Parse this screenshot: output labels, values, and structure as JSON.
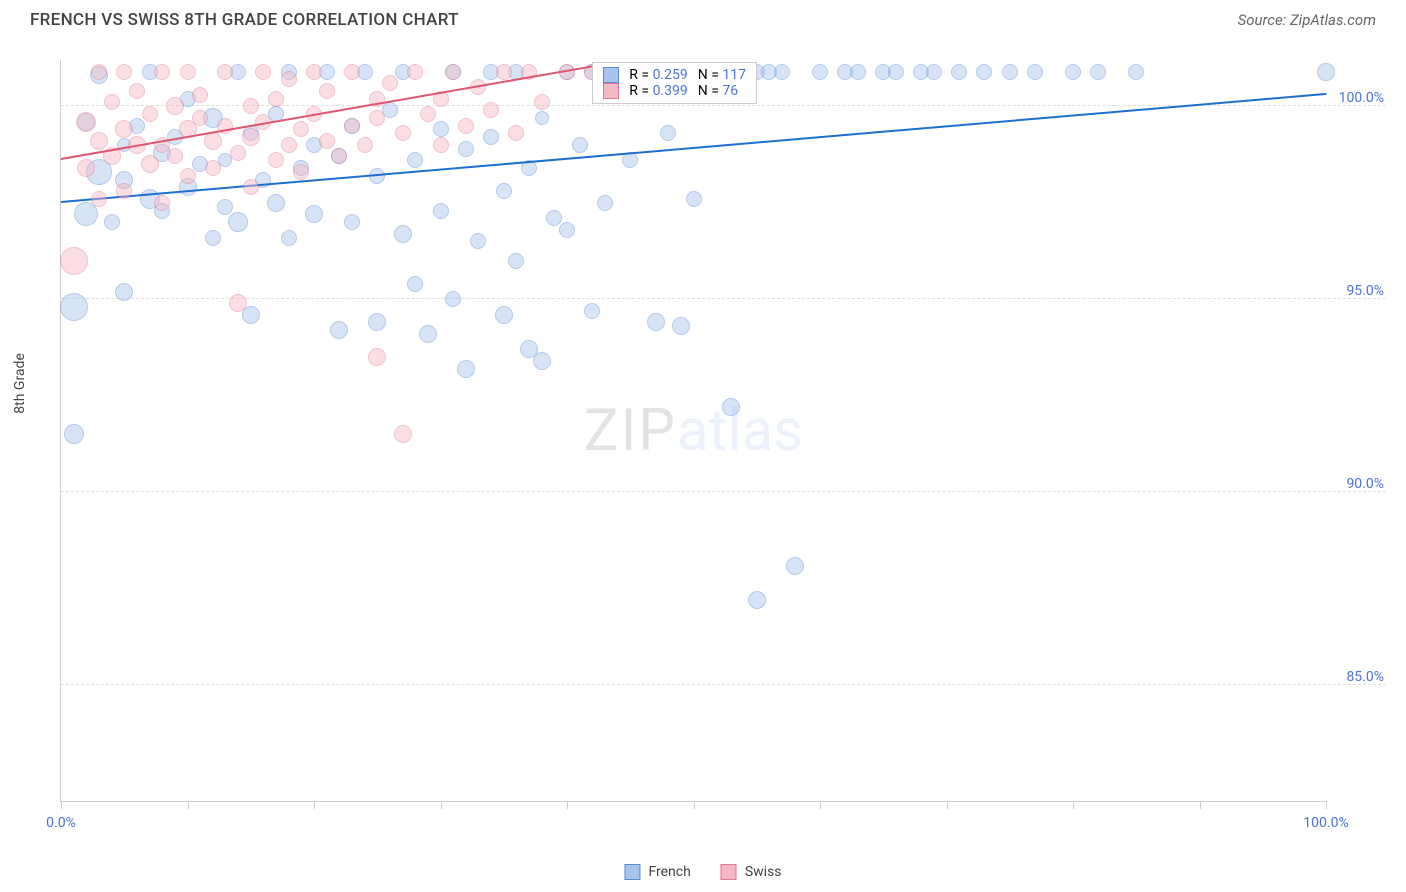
{
  "header": {
    "title": "FRENCH VS SWISS 8TH GRADE CORRELATION CHART",
    "source_label": "Source: ZipAtlas.com"
  },
  "watermark": {
    "part1": "ZIP",
    "part2": "atlas"
  },
  "chart": {
    "type": "scatter",
    "ylabel": "8th Grade",
    "xlim": [
      0,
      100
    ],
    "ylim": [
      82,
      101.2
    ],
    "x_ticks_major": [
      0,
      10,
      20,
      30,
      40,
      50,
      60,
      70,
      80,
      90,
      100
    ],
    "x_tick_labels": {
      "0": "0.0%",
      "100": "100.0%"
    },
    "y_ticks": [
      85,
      90,
      95,
      100
    ],
    "y_tick_labels": [
      "85.0%",
      "90.0%",
      "95.0%",
      "100.0%"
    ],
    "grid_color": "#dddddd",
    "background_color": "#ffffff",
    "axis_label_color": "#4a74d8",
    "point_opacity": 0.45,
    "point_radius_min": 7,
    "point_radius_max": 14,
    "series": [
      {
        "name": "French",
        "color_fill": "#a8c4ec",
        "color_stroke": "#5a8bd6",
        "trend_color": "#1f6fd0",
        "trend": {
          "x1": 0,
          "y1": 97.5,
          "x2": 100,
          "y2": 100.3
        },
        "stats": {
          "R": "0.259",
          "N": "117"
        },
        "points": [
          {
            "x": 1,
            "y": 94.8,
            "r": 14
          },
          {
            "x": 1,
            "y": 91.5,
            "r": 10
          },
          {
            "x": 2,
            "y": 97.2,
            "r": 12
          },
          {
            "x": 2,
            "y": 99.6,
            "r": 9
          },
          {
            "x": 3,
            "y": 98.3,
            "r": 13
          },
          {
            "x": 3,
            "y": 100.8,
            "r": 9
          },
          {
            "x": 4,
            "y": 97.0,
            "r": 8
          },
          {
            "x": 5,
            "y": 98.1,
            "r": 9
          },
          {
            "x": 5,
            "y": 99.0,
            "r": 7
          },
          {
            "x": 5,
            "y": 95.2,
            "r": 9
          },
          {
            "x": 6,
            "y": 99.5,
            "r": 8
          },
          {
            "x": 7,
            "y": 97.6,
            "r": 10
          },
          {
            "x": 7,
            "y": 100.9,
            "r": 8
          },
          {
            "x": 8,
            "y": 98.8,
            "r": 9
          },
          {
            "x": 8,
            "y": 97.3,
            "r": 8
          },
          {
            "x": 9,
            "y": 99.2,
            "r": 8
          },
          {
            "x": 10,
            "y": 100.2,
            "r": 8
          },
          {
            "x": 10,
            "y": 97.9,
            "r": 9
          },
          {
            "x": 11,
            "y": 98.5,
            "r": 8
          },
          {
            "x": 12,
            "y": 99.7,
            "r": 10
          },
          {
            "x": 12,
            "y": 96.6,
            "r": 8
          },
          {
            "x": 13,
            "y": 97.4,
            "r": 8
          },
          {
            "x": 13,
            "y": 98.6,
            "r": 7
          },
          {
            "x": 14,
            "y": 100.9,
            "r": 8
          },
          {
            "x": 14,
            "y": 97.0,
            "r": 10
          },
          {
            "x": 15,
            "y": 99.3,
            "r": 8
          },
          {
            "x": 15,
            "y": 94.6,
            "r": 9
          },
          {
            "x": 16,
            "y": 98.1,
            "r": 8
          },
          {
            "x": 17,
            "y": 99.8,
            "r": 8
          },
          {
            "x": 17,
            "y": 97.5,
            "r": 9
          },
          {
            "x": 18,
            "y": 100.9,
            "r": 8
          },
          {
            "x": 18,
            "y": 96.6,
            "r": 8
          },
          {
            "x": 19,
            "y": 98.4,
            "r": 8
          },
          {
            "x": 20,
            "y": 99.0,
            "r": 8
          },
          {
            "x": 20,
            "y": 97.2,
            "r": 9
          },
          {
            "x": 21,
            "y": 100.9,
            "r": 8
          },
          {
            "x": 22,
            "y": 98.7,
            "r": 8
          },
          {
            "x": 22,
            "y": 94.2,
            "r": 9
          },
          {
            "x": 23,
            "y": 99.5,
            "r": 8
          },
          {
            "x": 23,
            "y": 97.0,
            "r": 8
          },
          {
            "x": 24,
            "y": 100.9,
            "r": 8
          },
          {
            "x": 25,
            "y": 98.2,
            "r": 8
          },
          {
            "x": 25,
            "y": 94.4,
            "r": 9
          },
          {
            "x": 26,
            "y": 99.9,
            "r": 8
          },
          {
            "x": 27,
            "y": 96.7,
            "r": 9
          },
          {
            "x": 27,
            "y": 100.9,
            "r": 8
          },
          {
            "x": 28,
            "y": 98.6,
            "r": 8
          },
          {
            "x": 28,
            "y": 95.4,
            "r": 8
          },
          {
            "x": 29,
            "y": 94.1,
            "r": 9
          },
          {
            "x": 30,
            "y": 99.4,
            "r": 8
          },
          {
            "x": 30,
            "y": 97.3,
            "r": 8
          },
          {
            "x": 31,
            "y": 100.9,
            "r": 8
          },
          {
            "x": 31,
            "y": 95.0,
            "r": 8
          },
          {
            "x": 32,
            "y": 98.9,
            "r": 8
          },
          {
            "x": 32,
            "y": 93.2,
            "r": 9
          },
          {
            "x": 33,
            "y": 96.5,
            "r": 8
          },
          {
            "x": 34,
            "y": 100.9,
            "r": 8
          },
          {
            "x": 34,
            "y": 99.2,
            "r": 8
          },
          {
            "x": 35,
            "y": 97.8,
            "r": 8
          },
          {
            "x": 35,
            "y": 94.6,
            "r": 9
          },
          {
            "x": 36,
            "y": 100.9,
            "r": 8
          },
          {
            "x": 36,
            "y": 96.0,
            "r": 8
          },
          {
            "x": 37,
            "y": 98.4,
            "r": 8
          },
          {
            "x": 37,
            "y": 93.7,
            "r": 9
          },
          {
            "x": 38,
            "y": 99.7,
            "r": 7
          },
          {
            "x": 38,
            "y": 93.4,
            "r": 9
          },
          {
            "x": 39,
            "y": 97.1,
            "r": 8
          },
          {
            "x": 40,
            "y": 100.9,
            "r": 8
          },
          {
            "x": 40,
            "y": 96.8,
            "r": 8
          },
          {
            "x": 41,
            "y": 99.0,
            "r": 8
          },
          {
            "x": 42,
            "y": 100.9,
            "r": 8
          },
          {
            "x": 42,
            "y": 94.7,
            "r": 8
          },
          {
            "x": 43,
            "y": 97.5,
            "r": 8
          },
          {
            "x": 44,
            "y": 100.9,
            "r": 8
          },
          {
            "x": 45,
            "y": 98.6,
            "r": 8
          },
          {
            "x": 46,
            "y": 100.9,
            "r": 8
          },
          {
            "x": 47,
            "y": 94.4,
            "r": 9
          },
          {
            "x": 48,
            "y": 99.3,
            "r": 8
          },
          {
            "x": 49,
            "y": 100.9,
            "r": 8
          },
          {
            "x": 49,
            "y": 94.3,
            "r": 9
          },
          {
            "x": 50,
            "y": 97.6,
            "r": 8
          },
          {
            "x": 50,
            "y": 100.9,
            "r": 8
          },
          {
            "x": 51,
            "y": 100.9,
            "r": 8
          },
          {
            "x": 53,
            "y": 92.2,
            "r": 9
          },
          {
            "x": 55,
            "y": 100.9,
            "r": 8
          },
          {
            "x": 55,
            "y": 87.2,
            "r": 9
          },
          {
            "x": 56,
            "y": 100.9,
            "r": 8
          },
          {
            "x": 57,
            "y": 100.9,
            "r": 8
          },
          {
            "x": 58,
            "y": 88.1,
            "r": 9
          },
          {
            "x": 60,
            "y": 100.9,
            "r": 8
          },
          {
            "x": 62,
            "y": 100.9,
            "r": 8
          },
          {
            "x": 63,
            "y": 100.9,
            "r": 8
          },
          {
            "x": 65,
            "y": 100.9,
            "r": 8
          },
          {
            "x": 66,
            "y": 100.9,
            "r": 8
          },
          {
            "x": 68,
            "y": 100.9,
            "r": 8
          },
          {
            "x": 69,
            "y": 100.9,
            "r": 8
          },
          {
            "x": 71,
            "y": 100.9,
            "r": 8
          },
          {
            "x": 73,
            "y": 100.9,
            "r": 8
          },
          {
            "x": 75,
            "y": 100.9,
            "r": 8
          },
          {
            "x": 77,
            "y": 100.9,
            "r": 8
          },
          {
            "x": 80,
            "y": 100.9,
            "r": 8
          },
          {
            "x": 82,
            "y": 100.9,
            "r": 8
          },
          {
            "x": 85,
            "y": 100.9,
            "r": 8
          },
          {
            "x": 100,
            "y": 100.9,
            "r": 9
          }
        ]
      },
      {
        "name": "Swiss",
        "color_fill": "#f4b8c4",
        "color_stroke": "#e07a92",
        "trend_color": "#e05570",
        "trend": {
          "x1": 0,
          "y1": 98.6,
          "x2": 42,
          "y2": 101.0
        },
        "stats": {
          "R": "0.399",
          "N": "76"
        },
        "points": [
          {
            "x": 1,
            "y": 96.0,
            "r": 14
          },
          {
            "x": 2,
            "y": 99.6,
            "r": 10
          },
          {
            "x": 2,
            "y": 98.4,
            "r": 9
          },
          {
            "x": 3,
            "y": 100.9,
            "r": 8
          },
          {
            "x": 3,
            "y": 99.1,
            "r": 9
          },
          {
            "x": 3,
            "y": 97.6,
            "r": 8
          },
          {
            "x": 4,
            "y": 100.1,
            "r": 8
          },
          {
            "x": 4,
            "y": 98.7,
            "r": 9
          },
          {
            "x": 5,
            "y": 99.4,
            "r": 9
          },
          {
            "x": 5,
            "y": 100.9,
            "r": 8
          },
          {
            "x": 5,
            "y": 97.8,
            "r": 8
          },
          {
            "x": 6,
            "y": 99.0,
            "r": 9
          },
          {
            "x": 6,
            "y": 100.4,
            "r": 8
          },
          {
            "x": 7,
            "y": 98.5,
            "r": 9
          },
          {
            "x": 7,
            "y": 99.8,
            "r": 8
          },
          {
            "x": 8,
            "y": 100.9,
            "r": 8
          },
          {
            "x": 8,
            "y": 99.0,
            "r": 8
          },
          {
            "x": 8,
            "y": 97.5,
            "r": 8
          },
          {
            "x": 9,
            "y": 100.0,
            "r": 9
          },
          {
            "x": 9,
            "y": 98.7,
            "r": 8
          },
          {
            "x": 10,
            "y": 99.4,
            "r": 9
          },
          {
            "x": 10,
            "y": 100.9,
            "r": 8
          },
          {
            "x": 10,
            "y": 98.2,
            "r": 8
          },
          {
            "x": 11,
            "y": 99.7,
            "r": 8
          },
          {
            "x": 11,
            "y": 100.3,
            "r": 8
          },
          {
            "x": 12,
            "y": 99.1,
            "r": 9
          },
          {
            "x": 12,
            "y": 98.4,
            "r": 8
          },
          {
            "x": 13,
            "y": 100.9,
            "r": 8
          },
          {
            "x": 13,
            "y": 99.5,
            "r": 8
          },
          {
            "x": 14,
            "y": 94.9,
            "r": 9
          },
          {
            "x": 14,
            "y": 98.8,
            "r": 8
          },
          {
            "x": 15,
            "y": 100.0,
            "r": 8
          },
          {
            "x": 15,
            "y": 99.2,
            "r": 9
          },
          {
            "x": 15,
            "y": 97.9,
            "r": 8
          },
          {
            "x": 16,
            "y": 100.9,
            "r": 8
          },
          {
            "x": 16,
            "y": 99.6,
            "r": 8
          },
          {
            "x": 17,
            "y": 98.6,
            "r": 8
          },
          {
            "x": 17,
            "y": 100.2,
            "r": 8
          },
          {
            "x": 18,
            "y": 99.0,
            "r": 8
          },
          {
            "x": 18,
            "y": 100.7,
            "r": 8
          },
          {
            "x": 19,
            "y": 99.4,
            "r": 8
          },
          {
            "x": 19,
            "y": 98.3,
            "r": 8
          },
          {
            "x": 20,
            "y": 100.9,
            "r": 8
          },
          {
            "x": 20,
            "y": 99.8,
            "r": 8
          },
          {
            "x": 21,
            "y": 99.1,
            "r": 8
          },
          {
            "x": 21,
            "y": 100.4,
            "r": 8
          },
          {
            "x": 22,
            "y": 98.7,
            "r": 8
          },
          {
            "x": 23,
            "y": 99.5,
            "r": 8
          },
          {
            "x": 23,
            "y": 100.9,
            "r": 8
          },
          {
            "x": 24,
            "y": 99.0,
            "r": 8
          },
          {
            "x": 25,
            "y": 100.2,
            "r": 8
          },
          {
            "x": 25,
            "y": 99.7,
            "r": 8
          },
          {
            "x": 25,
            "y": 93.5,
            "r": 9
          },
          {
            "x": 26,
            "y": 100.6,
            "r": 8
          },
          {
            "x": 27,
            "y": 91.5,
            "r": 9
          },
          {
            "x": 27,
            "y": 99.3,
            "r": 8
          },
          {
            "x": 28,
            "y": 100.9,
            "r": 8
          },
          {
            "x": 29,
            "y": 99.8,
            "r": 8
          },
          {
            "x": 30,
            "y": 100.2,
            "r": 8
          },
          {
            "x": 30,
            "y": 99.0,
            "r": 8
          },
          {
            "x": 31,
            "y": 100.9,
            "r": 8
          },
          {
            "x": 32,
            "y": 99.5,
            "r": 8
          },
          {
            "x": 33,
            "y": 100.5,
            "r": 8
          },
          {
            "x": 34,
            "y": 99.9,
            "r": 8
          },
          {
            "x": 35,
            "y": 100.9,
            "r": 8
          },
          {
            "x": 36,
            "y": 99.3,
            "r": 8
          },
          {
            "x": 37,
            "y": 100.9,
            "r": 8
          },
          {
            "x": 38,
            "y": 100.1,
            "r": 8
          },
          {
            "x": 40,
            "y": 100.9,
            "r": 8
          },
          {
            "x": 42,
            "y": 100.9,
            "r": 8
          }
        ]
      }
    ]
  },
  "legend_top": {
    "r_prefix": "R = ",
    "n_prefix": "N = "
  },
  "legend_bottom": {
    "label_french": "French",
    "label_swiss": "Swiss"
  }
}
